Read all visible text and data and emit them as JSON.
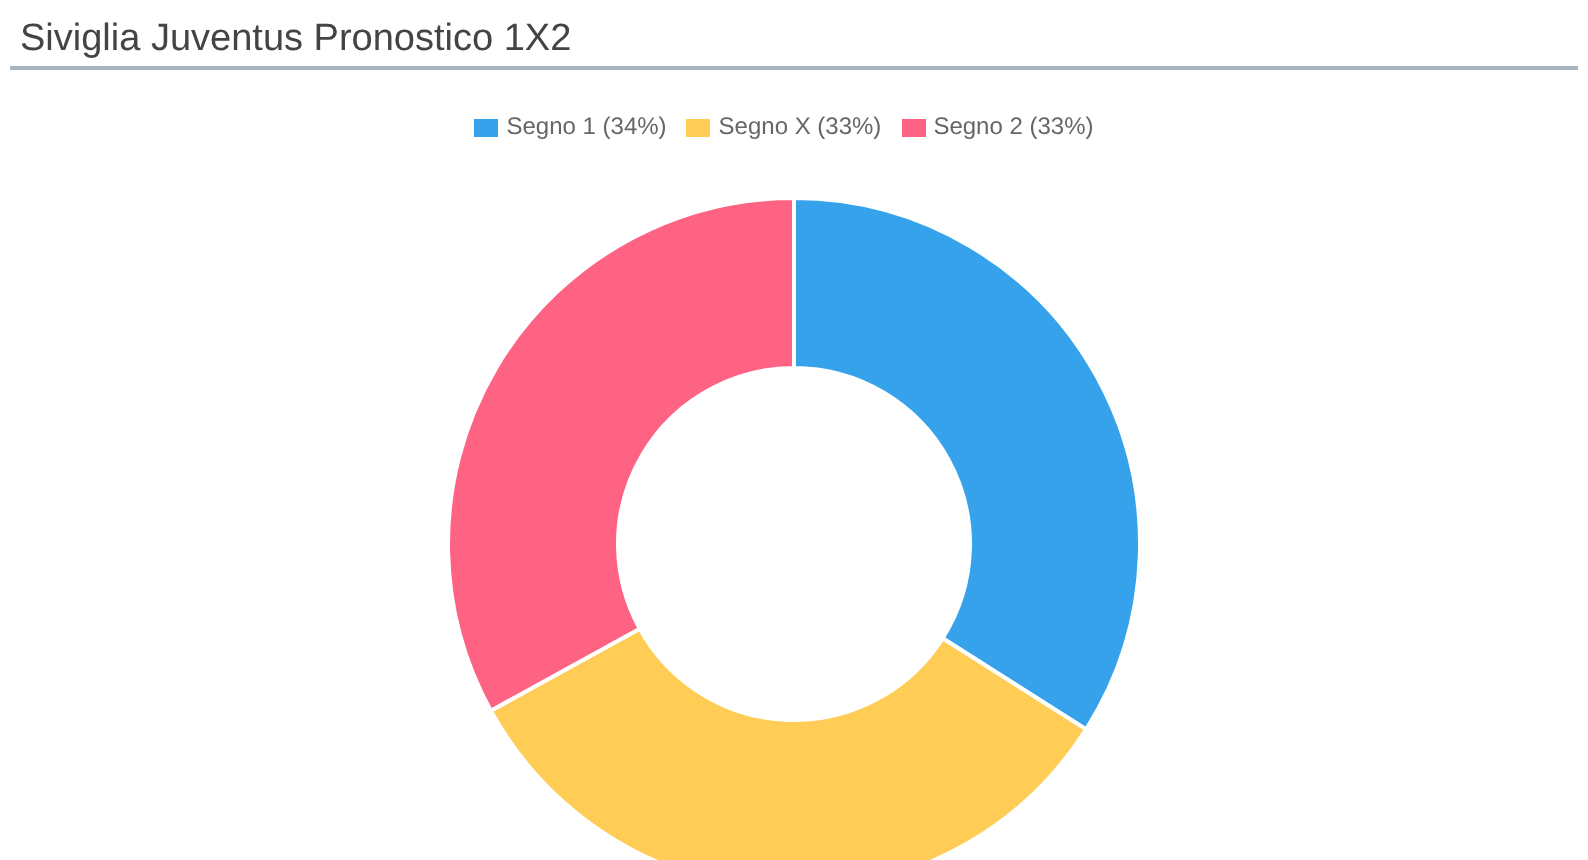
{
  "chart_data": {
    "type": "donut",
    "title": "Siviglia Juventus Pronostico 1X2",
    "categories": [
      "Segno 1 (34%)",
      "Segno X (33%)",
      "Segno 2 (33%)"
    ],
    "values": [
      34,
      33,
      33
    ],
    "colors": [
      "#36a2eb",
      "#ffcd56",
      "#ff6384"
    ],
    "legend": "top"
  }
}
